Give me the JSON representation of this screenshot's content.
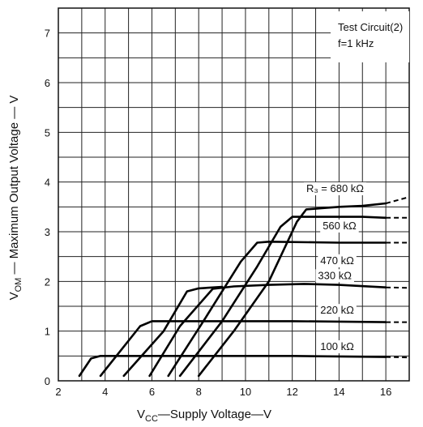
{
  "chart_data": {
    "type": "line",
    "xlabel_main": "V",
    "xlabel_sub": "CC",
    "xlabel_rest": "—Supply Voltage—V",
    "ylabel_main": "V",
    "ylabel_sub": "OM",
    "ylabel_rest": " — Maximum Output Voltage — V",
    "xlim": [
      2,
      17
    ],
    "ylim": [
      0,
      7.5
    ],
    "x_ticks": [
      2,
      4,
      6,
      8,
      10,
      12,
      14,
      16
    ],
    "y_ticks": [
      0,
      1,
      2,
      3,
      4,
      5,
      6,
      7
    ],
    "grid": true,
    "annotations": {
      "test_circuit": "Test Circuit(2)",
      "frequency": "f=1 kHz"
    },
    "series": [
      {
        "name": "R₃=680 kΩ",
        "points": [
          [
            8.0,
            0.1
          ],
          [
            9.5,
            1.0
          ],
          [
            11.0,
            2.0
          ],
          [
            12.2,
            3.2
          ],
          [
            12.6,
            3.45
          ],
          [
            14.0,
            3.5
          ],
          [
            15.0,
            3.52
          ],
          [
            16.0,
            3.57
          ]
        ],
        "dashed": [
          [
            16.0,
            3.57
          ],
          [
            17.0,
            3.7
          ]
        ]
      },
      {
        "name": "560 kΩ",
        "points": [
          [
            7.2,
            0.1
          ],
          [
            9.0,
            1.2
          ],
          [
            10.5,
            2.3
          ],
          [
            11.5,
            3.1
          ],
          [
            12.0,
            3.3
          ],
          [
            14.0,
            3.3
          ],
          [
            15.0,
            3.3
          ],
          [
            16.0,
            3.28
          ]
        ],
        "dashed": [
          [
            16.0,
            3.28
          ],
          [
            17.0,
            3.28
          ]
        ]
      },
      {
        "name": "470 kΩ",
        "points": [
          [
            6.7,
            0.1
          ],
          [
            8.2,
            1.2
          ],
          [
            9.8,
            2.4
          ],
          [
            10.5,
            2.78
          ],
          [
            11.0,
            2.8
          ],
          [
            14.0,
            2.78
          ],
          [
            16.0,
            2.78
          ]
        ],
        "dashed": [
          [
            16.0,
            2.78
          ],
          [
            17.0,
            2.78
          ]
        ]
      },
      {
        "name": "330 kΩ",
        "points": [
          [
            5.9,
            0.1
          ],
          [
            7.2,
            1.1
          ],
          [
            8.6,
            1.85
          ],
          [
            9.5,
            1.9
          ],
          [
            11.0,
            1.93
          ],
          [
            12.5,
            1.95
          ],
          [
            14.0,
            1.93
          ],
          [
            16.0,
            1.88
          ]
        ],
        "dashed": [
          [
            16.0,
            1.88
          ],
          [
            17.0,
            1.87
          ]
        ]
      },
      {
        "name": "220 kΩ",
        "points": [
          [
            4.8,
            0.1
          ],
          [
            6.5,
            1.0
          ],
          [
            7.5,
            1.8
          ],
          [
            8.0,
            1.86
          ],
          [
            9.0,
            1.89
          ]
        ]
      },
      {
        "name": "220 kΩ flat",
        "points": [
          [
            3.8,
            0.1
          ],
          [
            5.5,
            1.1
          ],
          [
            6.0,
            1.2
          ],
          [
            8.0,
            1.2
          ],
          [
            12.0,
            1.2
          ],
          [
            16.0,
            1.18
          ]
        ],
        "dashed": [
          [
            16.0,
            1.18
          ],
          [
            17.0,
            1.18
          ]
        ]
      },
      {
        "name": "100 kΩ",
        "points": [
          [
            2.9,
            0.1
          ],
          [
            3.4,
            0.45
          ],
          [
            3.8,
            0.5
          ],
          [
            8.0,
            0.5
          ],
          [
            12.0,
            0.5
          ],
          [
            16.0,
            0.48
          ]
        ],
        "dashed": [
          [
            16.0,
            0.48
          ],
          [
            17.0,
            0.47
          ]
        ]
      }
    ],
    "curve_labels": [
      {
        "text": "R₃ = 680  kΩ",
        "x": 12.6,
        "y": 3.8
      },
      {
        "text": "560  kΩ",
        "x": 13.3,
        "y": 3.05
      },
      {
        "text": "470  kΩ",
        "x": 13.2,
        "y": 2.35
      },
      {
        "text": "330  kΩ",
        "x": 13.1,
        "y": 2.05
      },
      {
        "text": "220 kΩ",
        "x": 13.2,
        "y": 1.35
      },
      {
        "text": "100  kΩ",
        "x": 13.2,
        "y": 0.62
      }
    ]
  }
}
